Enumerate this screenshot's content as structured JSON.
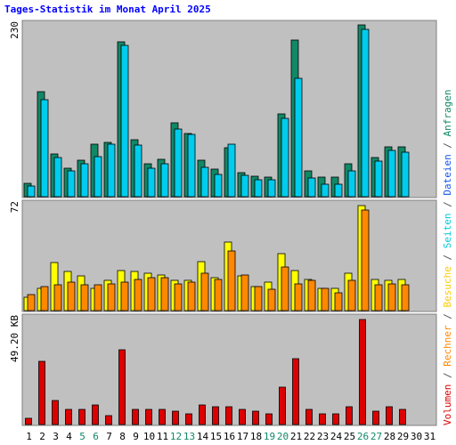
{
  "title": "Tages-Statistik im Monat April 2025",
  "legend_parts": [
    {
      "text": "Volumen",
      "color": "#dd0000"
    },
    {
      "text": " / ",
      "color": "#555555"
    },
    {
      "text": "Rechner",
      "color": "#ff8800"
    },
    {
      "text": " / ",
      "color": "#555555"
    },
    {
      "text": "Besuche",
      "color": "#ffcc00"
    },
    {
      "text": " / ",
      "color": "#555555"
    },
    {
      "text": "Seiten",
      "color": "#00ccdd"
    },
    {
      "text": " / ",
      "color": "#555555"
    },
    {
      "text": "Dateien",
      "color": "#1155ee"
    },
    {
      "text": " / ",
      "color": "#555555"
    },
    {
      "text": "Anfragen",
      "color": "#118866"
    }
  ],
  "colors": {
    "background": "#c0c0c0",
    "frame": "#808080",
    "title": "#0000ff",
    "weekday_label": "#000000",
    "weekend_label": "#118866",
    "anfragen": "#118866",
    "seiten": "#00ccee",
    "besuche": "#ffff00",
    "rechner": "#ff8800",
    "volumen": "#dd0000"
  },
  "chart_data": [
    {
      "type": "bar",
      "panel": "top",
      "ymax_label": "230",
      "ylim": [
        0,
        230
      ],
      "categories": [
        "1",
        "2",
        "3",
        "4",
        "5",
        "6",
        "7",
        "8",
        "9",
        "10",
        "11",
        "12",
        "13",
        "14",
        "15",
        "16",
        "17",
        "18",
        "19",
        "20",
        "21",
        "22",
        "23",
        "24",
        "25",
        "26",
        "27",
        "28",
        "29",
        "30",
        "31"
      ],
      "weekend_days": [
        5,
        6,
        12,
        13,
        19,
        20,
        26,
        27
      ],
      "series": [
        {
          "name": "Anfragen",
          "color": "#118866",
          "values": [
            18,
            139,
            57,
            38,
            48,
            70,
            72,
            205,
            76,
            44,
            50,
            98,
            84,
            48,
            37,
            65,
            32,
            27,
            26,
            110,
            208,
            34,
            26,
            26,
            44,
            228,
            52,
            66,
            66,
            0,
            0
          ]
        },
        {
          "name": "Seiten",
          "color": "#00ccee",
          "values": [
            14,
            128,
            52,
            34,
            44,
            53,
            69,
            200,
            68,
            38,
            44,
            90,
            83,
            39,
            29,
            70,
            28,
            22,
            22,
            104,
            157,
            25,
            17,
            17,
            34,
            222,
            47,
            61,
            59,
            0,
            0
          ]
        }
      ]
    },
    {
      "type": "bar",
      "panel": "middle",
      "ymax_label": "72",
      "ylim": [
        0,
        72
      ],
      "series": [
        {
          "name": "Besuche",
          "color": "#ffff00",
          "values": [
            9,
            15,
            32,
            26,
            23,
            15,
            20,
            27,
            26,
            25,
            24,
            20,
            20,
            33,
            22,
            46,
            23,
            16,
            19,
            38,
            27,
            21,
            15,
            15,
            25,
            70,
            21,
            20,
            21,
            0,
            0
          ]
        },
        {
          "name": "Rechner",
          "color": "#ff8800",
          "values": [
            11,
            16,
            17,
            19,
            17,
            17,
            18,
            19,
            21,
            22,
            22,
            18,
            19,
            25,
            21,
            40,
            24,
            16,
            14,
            29,
            18,
            20,
            15,
            12,
            20,
            67,
            17,
            18,
            17,
            0,
            0
          ]
        }
      ]
    },
    {
      "type": "bar",
      "panel": "bottom",
      "ymax_label": "49.20 KB",
      "ylim": [
        0,
        49.2
      ],
      "series": [
        {
          "name": "Volumen",
          "color": "#dd0000",
          "values": [
            3,
            29,
            11,
            7,
            7,
            9,
            4,
            34,
            7,
            7,
            7,
            6,
            5,
            9,
            8,
            8,
            7,
            6,
            5,
            17,
            30,
            7,
            5,
            5,
            8,
            48,
            6,
            8,
            7,
            0,
            0
          ]
        }
      ]
    }
  ]
}
